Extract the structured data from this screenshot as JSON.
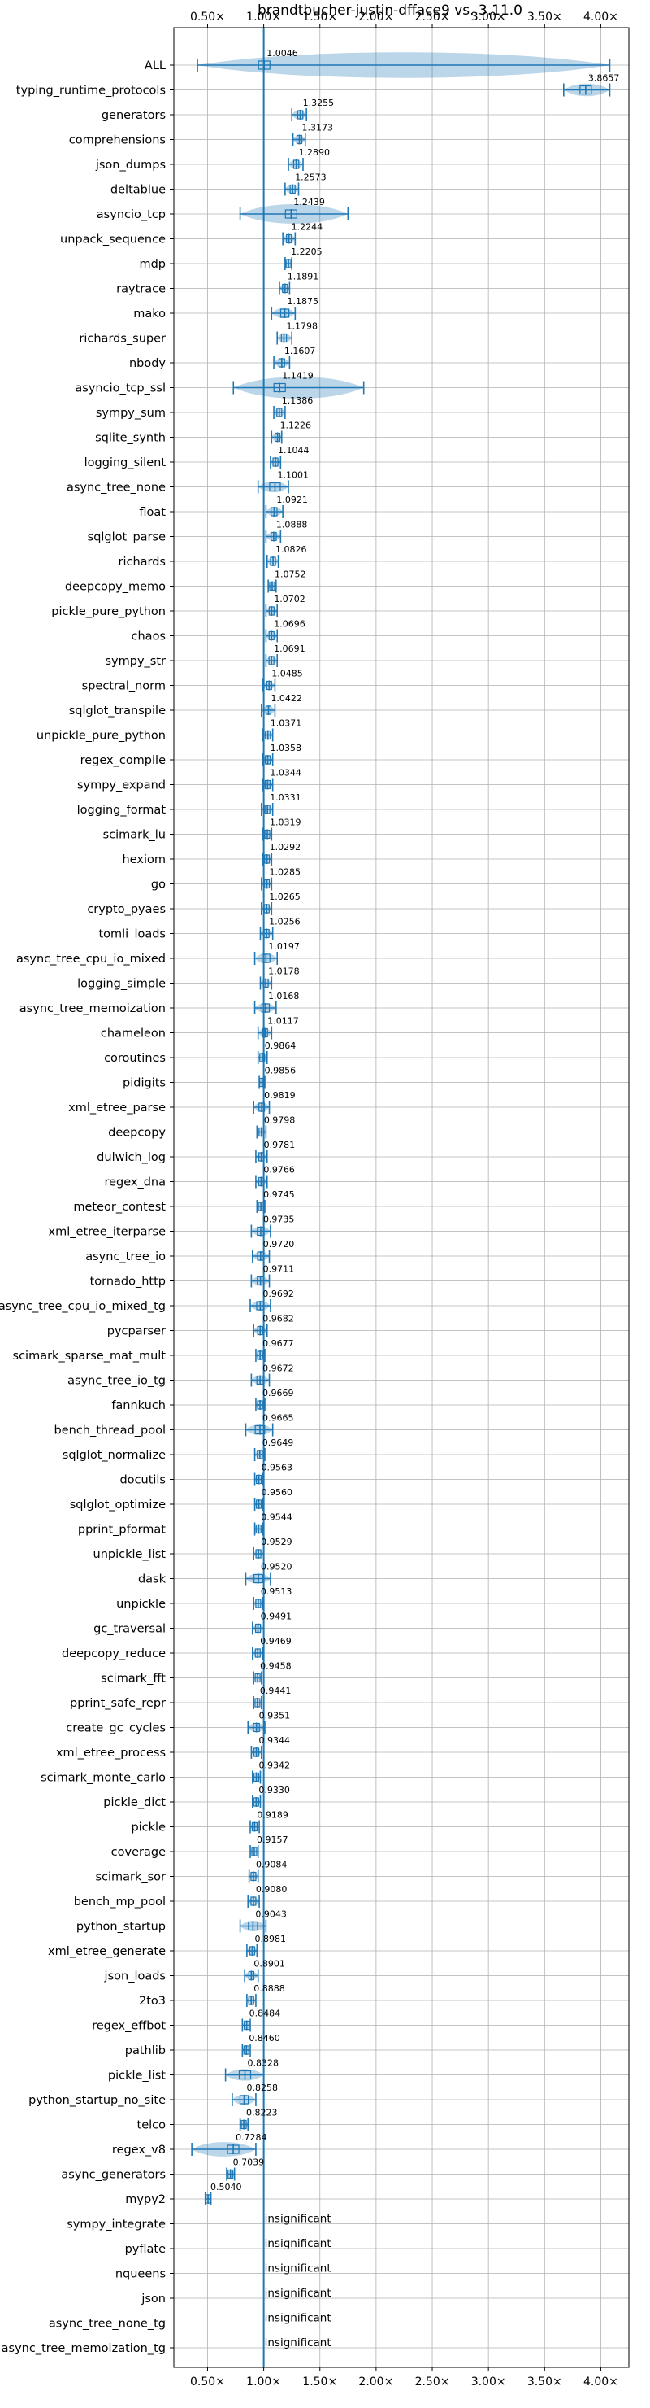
{
  "chart_data": {
    "type": "violin",
    "title": "brandtbucher-justin-dfface9 vs. 3.11.0",
    "x_tick_labels": [
      "0.50×",
      "1.00×",
      "1.50×",
      "2.00×",
      "2.50×",
      "3.00×",
      "3.50×",
      "4.00×"
    ],
    "x_ticks": [
      0.5,
      1.0,
      1.5,
      2.0,
      2.5,
      3.0,
      3.5,
      4.0
    ],
    "xlim": [
      0.2,
      4.25
    ],
    "reference_x": 1.0,
    "grid": true,
    "rows": [
      {
        "name": "ALL",
        "value": 1.0046,
        "label": "1.0046",
        "ci": [
          0.41,
          4.08
        ]
      },
      {
        "name": "typing_runtime_protocols",
        "value": 3.8657,
        "label": "3.8657",
        "ci": [
          3.67,
          4.08
        ]
      },
      {
        "name": "generators",
        "value": 1.3255,
        "label": "1.3255",
        "ci": [
          1.25,
          1.38
        ]
      },
      {
        "name": "comprehensions",
        "value": 1.3173,
        "label": "1.3173",
        "ci": [
          1.26,
          1.37
        ]
      },
      {
        "name": "json_dumps",
        "value": 1.289,
        "label": "1.2890",
        "ci": [
          1.22,
          1.35
        ]
      },
      {
        "name": "deltablue",
        "value": 1.2573,
        "label": "1.2573",
        "ci": [
          1.19,
          1.31
        ]
      },
      {
        "name": "asyncio_tcp",
        "value": 1.2439,
        "label": "1.2439",
        "ci": [
          0.79,
          1.75
        ]
      },
      {
        "name": "unpack_sequence",
        "value": 1.2244,
        "label": "1.2244",
        "ci": [
          1.17,
          1.28
        ]
      },
      {
        "name": "mdp",
        "value": 1.2205,
        "label": "1.2205",
        "ci": [
          1.19,
          1.25
        ]
      },
      {
        "name": "raytrace",
        "value": 1.1891,
        "label": "1.1891",
        "ci": [
          1.14,
          1.23
        ]
      },
      {
        "name": "mako",
        "value": 1.1875,
        "label": "1.1875",
        "ci": [
          1.07,
          1.28
        ]
      },
      {
        "name": "richards_super",
        "value": 1.1798,
        "label": "1.1798",
        "ci": [
          1.12,
          1.25
        ]
      },
      {
        "name": "nbody",
        "value": 1.1607,
        "label": "1.1607",
        "ci": [
          1.09,
          1.23
        ]
      },
      {
        "name": "asyncio_tcp_ssl",
        "value": 1.1419,
        "label": "1.1419",
        "ci": [
          0.73,
          1.89
        ]
      },
      {
        "name": "sympy_sum",
        "value": 1.1386,
        "label": "1.1386",
        "ci": [
          1.09,
          1.19
        ]
      },
      {
        "name": "sqlite_synth",
        "value": 1.1226,
        "label": "1.1226",
        "ci": [
          1.07,
          1.16
        ]
      },
      {
        "name": "logging_silent",
        "value": 1.1044,
        "label": "1.1044",
        "ci": [
          1.06,
          1.15
        ]
      },
      {
        "name": "async_tree_none",
        "value": 1.1001,
        "label": "1.1001",
        "ci": [
          0.95,
          1.22
        ]
      },
      {
        "name": "float",
        "value": 1.0921,
        "label": "1.0921",
        "ci": [
          1.02,
          1.17
        ]
      },
      {
        "name": "sqlglot_parse",
        "value": 1.0888,
        "label": "1.0888",
        "ci": [
          1.02,
          1.15
        ]
      },
      {
        "name": "richards",
        "value": 1.0826,
        "label": "1.0826",
        "ci": [
          1.03,
          1.13
        ]
      },
      {
        "name": "deepcopy_memo",
        "value": 1.0752,
        "label": "1.0752",
        "ci": [
          1.04,
          1.11
        ]
      },
      {
        "name": "pickle_pure_python",
        "value": 1.0702,
        "label": "1.0702",
        "ci": [
          1.02,
          1.12
        ]
      },
      {
        "name": "chaos",
        "value": 1.0696,
        "label": "1.0696",
        "ci": [
          1.02,
          1.12
        ]
      },
      {
        "name": "sympy_str",
        "value": 1.0691,
        "label": "1.0691",
        "ci": [
          1.02,
          1.12
        ]
      },
      {
        "name": "spectral_norm",
        "value": 1.0485,
        "label": "1.0485",
        "ci": [
          0.99,
          1.1
        ]
      },
      {
        "name": "sqlglot_transpile",
        "value": 1.0422,
        "label": "1.0422",
        "ci": [
          0.98,
          1.1
        ]
      },
      {
        "name": "unpickle_pure_python",
        "value": 1.0371,
        "label": "1.0371",
        "ci": [
          0.99,
          1.08
        ]
      },
      {
        "name": "regex_compile",
        "value": 1.0358,
        "label": "1.0358",
        "ci": [
          0.99,
          1.08
        ]
      },
      {
        "name": "sympy_expand",
        "value": 1.0344,
        "label": "1.0344",
        "ci": [
          0.99,
          1.08
        ]
      },
      {
        "name": "logging_format",
        "value": 1.0331,
        "label": "1.0331",
        "ci": [
          0.98,
          1.08
        ]
      },
      {
        "name": "scimark_lu",
        "value": 1.0319,
        "label": "1.0319",
        "ci": [
          0.99,
          1.07
        ]
      },
      {
        "name": "hexiom",
        "value": 1.0292,
        "label": "1.0292",
        "ci": [
          0.99,
          1.07
        ]
      },
      {
        "name": "go",
        "value": 1.0285,
        "label": "1.0285",
        "ci": [
          0.98,
          1.07
        ]
      },
      {
        "name": "crypto_pyaes",
        "value": 1.0265,
        "label": "1.0265",
        "ci": [
          0.98,
          1.07
        ]
      },
      {
        "name": "tomli_loads",
        "value": 1.0256,
        "label": "1.0256",
        "ci": [
          0.97,
          1.08
        ]
      },
      {
        "name": "async_tree_cpu_io_mixed",
        "value": 1.0197,
        "label": "1.0197",
        "ci": [
          0.92,
          1.12
        ]
      },
      {
        "name": "logging_simple",
        "value": 1.0178,
        "label": "1.0178",
        "ci": [
          0.97,
          1.07
        ]
      },
      {
        "name": "async_tree_memoization",
        "value": 1.0168,
        "label": "1.0168",
        "ci": [
          0.92,
          1.11
        ]
      },
      {
        "name": "chameleon",
        "value": 1.0117,
        "label": "1.0117",
        "ci": [
          0.95,
          1.07
        ]
      },
      {
        "name": "coroutines",
        "value": 0.9864,
        "label": "0.9864",
        "ci": [
          0.95,
          1.03
        ]
      },
      {
        "name": "pidigits",
        "value": 0.9856,
        "label": "0.9856",
        "ci": [
          0.96,
          1.01
        ]
      },
      {
        "name": "xml_etree_parse",
        "value": 0.9819,
        "label": "0.9819",
        "ci": [
          0.91,
          1.05
        ]
      },
      {
        "name": "deepcopy",
        "value": 0.9798,
        "label": "0.9798",
        "ci": [
          0.94,
          1.02
        ]
      },
      {
        "name": "dulwich_log",
        "value": 0.9781,
        "label": "0.9781",
        "ci": [
          0.93,
          1.03
        ]
      },
      {
        "name": "regex_dna",
        "value": 0.9766,
        "label": "0.9766",
        "ci": [
          0.93,
          1.03
        ]
      },
      {
        "name": "meteor_contest",
        "value": 0.9745,
        "label": "0.9745",
        "ci": [
          0.94,
          1.01
        ]
      },
      {
        "name": "xml_etree_iterparse",
        "value": 0.9735,
        "label": "0.9735",
        "ci": [
          0.89,
          1.06
        ]
      },
      {
        "name": "async_tree_io",
        "value": 0.972,
        "label": "0.9720",
        "ci": [
          0.9,
          1.05
        ]
      },
      {
        "name": "tornado_http",
        "value": 0.9711,
        "label": "0.9711",
        "ci": [
          0.89,
          1.05
        ]
      },
      {
        "name": "async_tree_cpu_io_mixed_tg",
        "value": 0.9692,
        "label": "0.9692",
        "ci": [
          0.88,
          1.06
        ]
      },
      {
        "name": "pycparser",
        "value": 0.9682,
        "label": "0.9682",
        "ci": [
          0.91,
          1.03
        ]
      },
      {
        "name": "scimark_sparse_mat_mult",
        "value": 0.9677,
        "label": "0.9677",
        "ci": [
          0.93,
          1.01
        ]
      },
      {
        "name": "async_tree_io_tg",
        "value": 0.9672,
        "label": "0.9672",
        "ci": [
          0.89,
          1.05
        ]
      },
      {
        "name": "fannkuch",
        "value": 0.9669,
        "label": "0.9669",
        "ci": [
          0.93,
          1.01
        ]
      },
      {
        "name": "bench_thread_pool",
        "value": 0.9665,
        "label": "0.9665",
        "ci": [
          0.84,
          1.08
        ]
      },
      {
        "name": "sqlglot_normalize",
        "value": 0.9649,
        "label": "0.9649",
        "ci": [
          0.92,
          1.01
        ]
      },
      {
        "name": "docutils",
        "value": 0.9563,
        "label": "0.9563",
        "ci": [
          0.92,
          0.99
        ]
      },
      {
        "name": "sqlglot_optimize",
        "value": 0.956,
        "label": "0.9560",
        "ci": [
          0.92,
          0.99
        ]
      },
      {
        "name": "pprint_pformat",
        "value": 0.9544,
        "label": "0.9544",
        "ci": [
          0.92,
          0.99
        ]
      },
      {
        "name": "unpickle_list",
        "value": 0.9529,
        "label": "0.9529",
        "ci": [
          0.91,
          1.0
        ]
      },
      {
        "name": "dask",
        "value": 0.952,
        "label": "0.9520",
        "ci": [
          0.84,
          1.06
        ]
      },
      {
        "name": "unpickle",
        "value": 0.9513,
        "label": "0.9513",
        "ci": [
          0.91,
          0.99
        ]
      },
      {
        "name": "gc_traversal",
        "value": 0.9491,
        "label": "0.9491",
        "ci": [
          0.9,
          1.0
        ]
      },
      {
        "name": "deepcopy_reduce",
        "value": 0.9469,
        "label": "0.9469",
        "ci": [
          0.9,
          0.99
        ]
      },
      {
        "name": "scimark_fft",
        "value": 0.9458,
        "label": "0.9458",
        "ci": [
          0.91,
          0.98
        ]
      },
      {
        "name": "pprint_safe_repr",
        "value": 0.9441,
        "label": "0.9441",
        "ci": [
          0.91,
          0.98
        ]
      },
      {
        "name": "create_gc_cycles",
        "value": 0.9351,
        "label": "0.9351",
        "ci": [
          0.86,
          1.01
        ]
      },
      {
        "name": "xml_etree_process",
        "value": 0.9344,
        "label": "0.9344",
        "ci": [
          0.89,
          0.98
        ]
      },
      {
        "name": "scimark_monte_carlo",
        "value": 0.9342,
        "label": "0.9342",
        "ci": [
          0.9,
          0.97
        ]
      },
      {
        "name": "pickle_dict",
        "value": 0.933,
        "label": "0.9330",
        "ci": [
          0.9,
          0.97
        ]
      },
      {
        "name": "pickle",
        "value": 0.9189,
        "label": "0.9189",
        "ci": [
          0.88,
          0.96
        ]
      },
      {
        "name": "coverage",
        "value": 0.9157,
        "label": "0.9157",
        "ci": [
          0.88,
          0.95
        ]
      },
      {
        "name": "scimark_sor",
        "value": 0.9084,
        "label": "0.9084",
        "ci": [
          0.87,
          0.95
        ]
      },
      {
        "name": "bench_mp_pool",
        "value": 0.908,
        "label": "0.9080",
        "ci": [
          0.86,
          0.96
        ]
      },
      {
        "name": "python_startup",
        "value": 0.9043,
        "label": "0.9043",
        "ci": [
          0.79,
          1.02
        ]
      },
      {
        "name": "xml_etree_generate",
        "value": 0.8981,
        "label": "0.8981",
        "ci": [
          0.85,
          0.94
        ]
      },
      {
        "name": "json_loads",
        "value": 0.8901,
        "label": "0.8901",
        "ci": [
          0.83,
          0.95
        ]
      },
      {
        "name": "2to3",
        "value": 0.8888,
        "label": "0.8888",
        "ci": [
          0.85,
          0.93
        ]
      },
      {
        "name": "regex_effbot",
        "value": 0.8484,
        "label": "0.8484",
        "ci": [
          0.81,
          0.88
        ]
      },
      {
        "name": "pathlib",
        "value": 0.846,
        "label": "0.8460",
        "ci": [
          0.81,
          0.88
        ]
      },
      {
        "name": "pickle_list",
        "value": 0.8328,
        "label": "0.8328",
        "ci": [
          0.66,
          1.0
        ]
      },
      {
        "name": "python_startup_no_site",
        "value": 0.8258,
        "label": "0.8258",
        "ci": [
          0.72,
          0.93
        ]
      },
      {
        "name": "telco",
        "value": 0.8223,
        "label": "0.8223",
        "ci": [
          0.79,
          0.86
        ]
      },
      {
        "name": "regex_v8",
        "value": 0.7284,
        "label": "0.7284",
        "ci": [
          0.36,
          0.93
        ]
      },
      {
        "name": "async_generators",
        "value": 0.7039,
        "label": "0.7039",
        "ci": [
          0.67,
          0.74
        ]
      },
      {
        "name": "mypy2",
        "value": 0.504,
        "label": "0.5040",
        "ci": [
          0.48,
          0.53
        ]
      },
      {
        "name": "sympy_integrate",
        "value": null,
        "label": "insignificant"
      },
      {
        "name": "pyflate",
        "value": null,
        "label": "insignificant"
      },
      {
        "name": "nqueens",
        "value": null,
        "label": "insignificant"
      },
      {
        "name": "json",
        "value": null,
        "label": "insignificant"
      },
      {
        "name": "async_tree_none_tg",
        "value": null,
        "label": "insignificant"
      },
      {
        "name": "async_tree_memoization_tg",
        "value": null,
        "label": "insignificant"
      }
    ]
  }
}
